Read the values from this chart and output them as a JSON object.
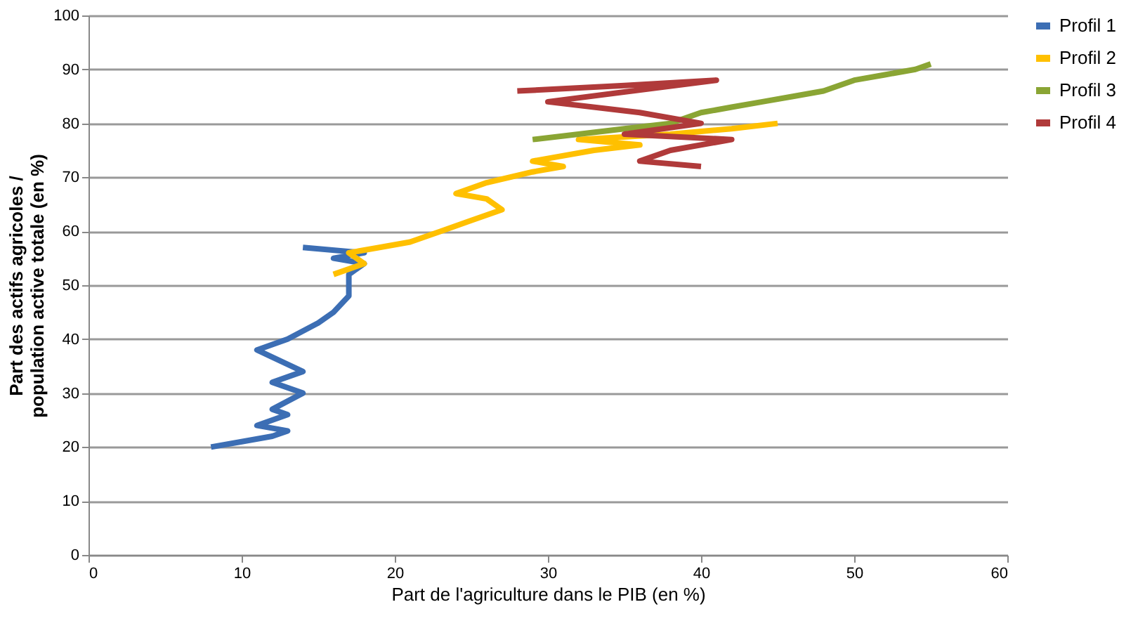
{
  "chart_data": {
    "type": "line",
    "xlabel": "Part de l'agriculture dans le PIB (en %)",
    "ylabel": "Part des actifs agricoles / population active totale (en %)",
    "xlim": [
      0,
      60
    ],
    "xticks": [
      0,
      10,
      20,
      30,
      40,
      50,
      60
    ],
    "ylim": [
      0,
      100
    ],
    "yticks": [
      0,
      10,
      20,
      30,
      40,
      50,
      60,
      70,
      80,
      90,
      100
    ],
    "grid": "y",
    "legend": "right",
    "marker": "none",
    "line_style": "solid",
    "series": [
      {
        "name": "Profil 1",
        "color": "#3c6eb4",
        "x": [
          8,
          10,
          12,
          13,
          11,
          13,
          12,
          14,
          12,
          14,
          11,
          13,
          15,
          16,
          17,
          17,
          18,
          16,
          18,
          14
        ],
        "values": [
          20,
          21,
          22,
          23,
          24,
          26,
          27,
          30,
          32,
          34,
          38,
          40,
          43,
          45,
          48,
          52,
          54,
          55,
          56,
          57
        ]
      },
      {
        "name": "Profil 2",
        "color": "#ffc000",
        "x": [
          16,
          18,
          17,
          19,
          21,
          23,
          25,
          27,
          26,
          24,
          26,
          29,
          31,
          29,
          33,
          36,
          32,
          38,
          42,
          45
        ],
        "values": [
          52,
          54,
          56,
          57,
          58,
          60,
          62,
          64,
          66,
          67,
          69,
          71,
          72,
          73,
          75,
          76,
          77,
          78,
          79,
          80
        ]
      },
      {
        "name": "Profil 3",
        "color": "#8aa534",
        "x": [
          29,
          32,
          35,
          38,
          40,
          42,
          44,
          46,
          48,
          50,
          52,
          54,
          55
        ],
        "values": [
          77,
          78,
          79,
          80,
          82,
          83,
          84,
          85,
          86,
          88,
          89,
          90,
          91
        ]
      },
      {
        "name": "Profil 4",
        "color": "#b03a3a",
        "x": [
          28,
          35,
          41,
          30,
          36,
          40,
          35,
          42,
          38,
          36,
          40
        ],
        "values": [
          86,
          87,
          88,
          84,
          82,
          80,
          78,
          77,
          75,
          73,
          72
        ]
      }
    ]
  }
}
